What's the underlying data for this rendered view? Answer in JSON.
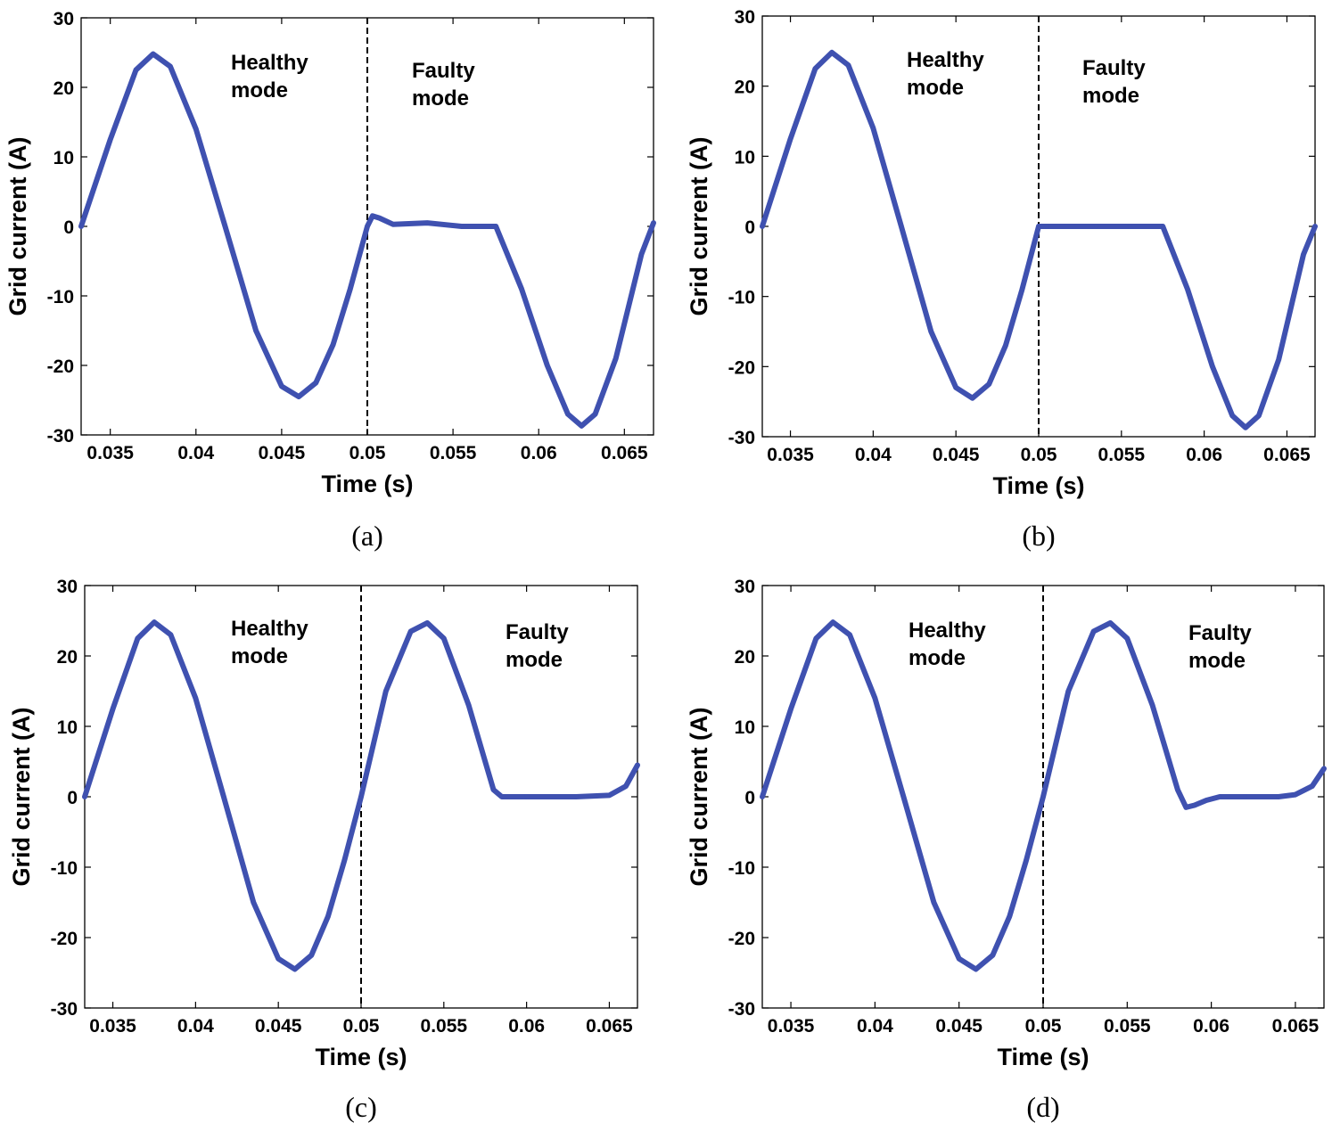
{
  "chart_data": [
    {
      "type": "line",
      "panel": "a",
      "caption": "(a)",
      "xlabel": "Time (s)",
      "ylabel": "Grid current (A)",
      "xlim": [
        0.0333,
        0.0667
      ],
      "ylim": [
        -30,
        30
      ],
      "xticks": [
        0.035,
        0.04,
        0.045,
        0.05,
        0.055,
        0.06,
        0.065
      ],
      "xtick_labels": [
        "0.035",
        "0.04",
        "0.045",
        "0.05",
        "0.055",
        "0.06",
        "0.065"
      ],
      "yticks": [
        30,
        20,
        10,
        0,
        -10,
        -20,
        -30
      ],
      "ytick_labels": [
        "30",
        "20",
        "10",
        "0",
        "-10",
        "-20",
        "-30"
      ],
      "fault_time": 0.05,
      "annotations": {
        "healthy": [
          "Healthy",
          "mode"
        ],
        "faulty": [
          "Faulty",
          "mode"
        ]
      },
      "series": [
        {
          "name": "Grid current",
          "color": "#3F51B0",
          "x": [
            0.0333,
            0.035,
            0.0365,
            0.0375,
            0.0385,
            0.04,
            0.0417,
            0.0435,
            0.045,
            0.046,
            0.047,
            0.048,
            0.049,
            0.05,
            0.0503,
            0.0507,
            0.0515,
            0.0535,
            0.0555,
            0.0575,
            0.059,
            0.0605,
            0.0617,
            0.0625,
            0.0633,
            0.0645,
            0.066,
            0.0667
          ],
          "y": [
            0,
            12.5,
            22.5,
            24.8,
            23,
            14,
            0,
            -15,
            -23,
            -24.5,
            -22.5,
            -17,
            -9,
            0,
            1.5,
            1.2,
            0.3,
            0.5,
            0,
            0,
            -9,
            -20,
            -27,
            -28.7,
            -27,
            -19,
            -4,
            0.5
          ]
        }
      ]
    },
    {
      "type": "line",
      "panel": "b",
      "caption": "(b)",
      "xlabel": "Time (s)",
      "ylabel": "Grid current (A)",
      "xlim": [
        0.0333,
        0.0667
      ],
      "ylim": [
        -30,
        30
      ],
      "xticks": [
        0.035,
        0.04,
        0.045,
        0.05,
        0.055,
        0.06,
        0.065
      ],
      "xtick_labels": [
        "0.035",
        "0.04",
        "0.045",
        "0.05",
        "0.055",
        "0.06",
        "0.065"
      ],
      "yticks": [
        30,
        20,
        10,
        0,
        -10,
        -20,
        -30
      ],
      "ytick_labels": [
        "30",
        "20",
        "10",
        "0",
        "-10",
        "-20",
        "-30"
      ],
      "fault_time": 0.05,
      "annotations": {
        "healthy": [
          "Healthy",
          "mode"
        ],
        "faulty": [
          "Faulty",
          "mode"
        ]
      },
      "series": [
        {
          "name": "Grid current",
          "color": "#3F51B0",
          "x": [
            0.0333,
            0.035,
            0.0365,
            0.0375,
            0.0385,
            0.04,
            0.0417,
            0.0435,
            0.045,
            0.046,
            0.047,
            0.048,
            0.049,
            0.05,
            0.0505,
            0.0535,
            0.0555,
            0.0575,
            0.059,
            0.0605,
            0.0617,
            0.0625,
            0.0633,
            0.0645,
            0.066,
            0.0667
          ],
          "y": [
            0,
            12.5,
            22.5,
            24.8,
            23,
            14,
            0,
            -15,
            -23,
            -24.5,
            -22.5,
            -17,
            -9,
            0,
            0,
            0,
            0,
            0,
            -9,
            -20,
            -27,
            -28.7,
            -27,
            -19,
            -4,
            0
          ]
        }
      ]
    },
    {
      "type": "line",
      "panel": "c",
      "caption": "(c)",
      "xlabel": "Time (s)",
      "ylabel": "Grid current (A)",
      "xlim": [
        0.0333,
        0.0667
      ],
      "ylim": [
        -30,
        30
      ],
      "xticks": [
        0.035,
        0.04,
        0.045,
        0.05,
        0.055,
        0.06,
        0.065
      ],
      "xtick_labels": [
        "0.035",
        "0.04",
        "0.045",
        "0.05",
        "0.055",
        "0.06",
        "0.065"
      ],
      "yticks": [
        30,
        20,
        10,
        0,
        -10,
        -20,
        -30
      ],
      "ytick_labels": [
        "30",
        "20",
        "10",
        "0",
        "-10",
        "-20",
        "-30"
      ],
      "fault_time": 0.05,
      "annotations": {
        "healthy": [
          "Healthy",
          "mode"
        ],
        "faulty": [
          "Faulty",
          "mode"
        ]
      },
      "series": [
        {
          "name": "Grid current",
          "color": "#3F51B0",
          "x": [
            0.0333,
            0.035,
            0.0365,
            0.0375,
            0.0385,
            0.04,
            0.0417,
            0.0435,
            0.045,
            0.046,
            0.047,
            0.048,
            0.049,
            0.05,
            0.0515,
            0.053,
            0.054,
            0.055,
            0.0565,
            0.0575,
            0.058,
            0.0585,
            0.06,
            0.063,
            0.065,
            0.066,
            0.0667
          ],
          "y": [
            0,
            12.5,
            22.5,
            24.8,
            23,
            14,
            0,
            -15,
            -23,
            -24.5,
            -22.5,
            -17,
            -9,
            0,
            15,
            23.5,
            24.7,
            22.5,
            13,
            5,
            1,
            0,
            0,
            0,
            0.2,
            1.5,
            4.5
          ]
        }
      ]
    },
    {
      "type": "line",
      "panel": "d",
      "caption": "(d)",
      "xlabel": "Time (s)",
      "ylabel": "Grid current (A)",
      "xlim": [
        0.0333,
        0.0667
      ],
      "ylim": [
        -30,
        30
      ],
      "xticks": [
        0.035,
        0.04,
        0.045,
        0.05,
        0.055,
        0.06,
        0.065
      ],
      "xtick_labels": [
        "0.035",
        "0.04",
        "0.045",
        "0.05",
        "0.055",
        "0.06",
        "0.065"
      ],
      "yticks": [
        30,
        20,
        10,
        0,
        -10,
        -20,
        -30
      ],
      "ytick_labels": [
        "30",
        "20",
        "10",
        "0",
        "-10",
        "-20",
        "-30"
      ],
      "fault_time": 0.05,
      "annotations": {
        "healthy": [
          "Healthy",
          "mode"
        ],
        "faulty": [
          "Faulty",
          "mode"
        ]
      },
      "series": [
        {
          "name": "Grid current",
          "color": "#3F51B0",
          "x": [
            0.0333,
            0.035,
            0.0365,
            0.0375,
            0.0385,
            0.04,
            0.0417,
            0.0435,
            0.045,
            0.046,
            0.047,
            0.048,
            0.049,
            0.05,
            0.0515,
            0.053,
            0.054,
            0.055,
            0.0565,
            0.0575,
            0.058,
            0.0585,
            0.059,
            0.0597,
            0.0605,
            0.062,
            0.064,
            0.065,
            0.066,
            0.0667
          ],
          "y": [
            0,
            12.5,
            22.5,
            24.8,
            23,
            14,
            0,
            -15,
            -23,
            -24.5,
            -22.5,
            -17,
            -9,
            0,
            15,
            23.5,
            24.7,
            22.5,
            13,
            5,
            1,
            -1.5,
            -1.2,
            -0.5,
            0,
            0,
            0,
            0.3,
            1.5,
            4
          ]
        }
      ]
    }
  ]
}
